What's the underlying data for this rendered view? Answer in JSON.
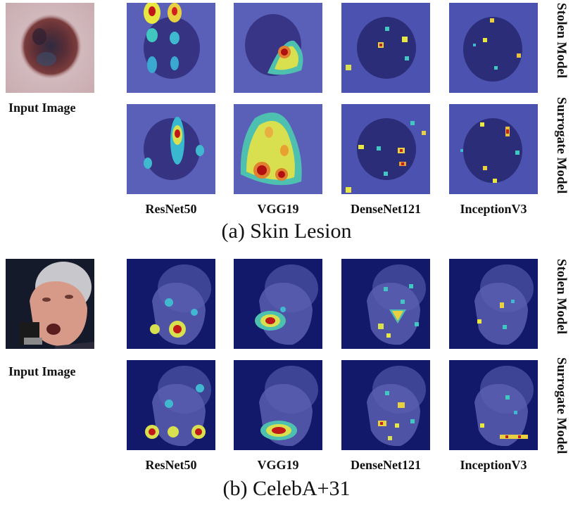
{
  "panels": [
    {
      "id": "a",
      "caption": "(a) Skin Lesion",
      "input_label": "Input Image",
      "row_labels": [
        "Stolen Model",
        "Surrogate Model"
      ],
      "models": [
        "ResNet50",
        "VGG19",
        "DenseNet121",
        "InceptionV3"
      ]
    },
    {
      "id": "b",
      "caption": "(b) CelebA+31",
      "input_label": "Input Image",
      "row_labels": [
        "Stolen Model",
        "Surrogate Model"
      ],
      "models": [
        "ResNet50",
        "VGG19",
        "DenseNet121",
        "InceptionV3"
      ]
    }
  ],
  "colors": {
    "heat_low": "#3a3cb0",
    "heat_mid": "#e8e840",
    "heat_high": "#c0181a",
    "skin_background": "#d8c2c4",
    "lesion": "#4a2c38",
    "face_background": "#141a2a",
    "face_skin": "#d89a88"
  }
}
